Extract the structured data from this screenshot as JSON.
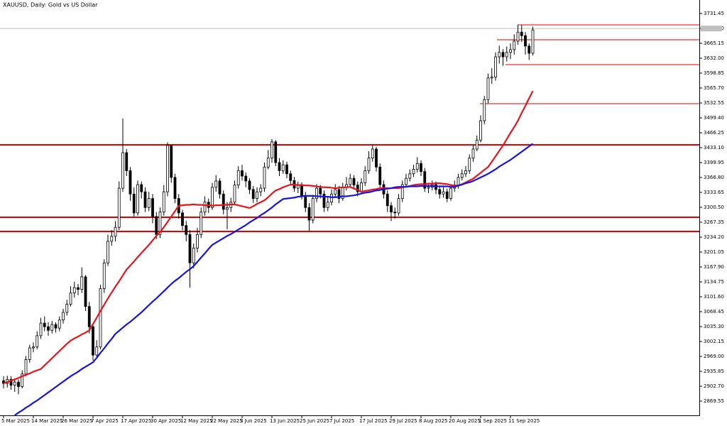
{
  "chart_data": {
    "type": "candlestick",
    "title": "XAUUSD, Daily:  Gold vs US Dollar",
    "categories": [
      "5 Mar 2025",
      null,
      null,
      null,
      null,
      null,
      null,
      null,
      "14 Mar 2025",
      null,
      null,
      null,
      null,
      null,
      null,
      null,
      "26 Mar 2025",
      null,
      null,
      null,
      null,
      null,
      null,
      null,
      "7 Apr 2025",
      null,
      null,
      null,
      null,
      null,
      null,
      null,
      "17 Apr 2025",
      null,
      null,
      null,
      null,
      null,
      null,
      null,
      "30 Apr 2025",
      null,
      null,
      null,
      null,
      null,
      null,
      null,
      "12 May 2025",
      null,
      null,
      null,
      null,
      null,
      null,
      null,
      "22 May 2025",
      null,
      null,
      null,
      null,
      null,
      null,
      null,
      "3 Jun 2025",
      null,
      null,
      null,
      null,
      null,
      null,
      null,
      "13 Jun 2025",
      null,
      null,
      null,
      null,
      null,
      null,
      null,
      "25 Jun 2025",
      null,
      null,
      null,
      null,
      null,
      null,
      null,
      "7 Jul 2025",
      null,
      null,
      null,
      null,
      null,
      null,
      null,
      "17 Jul 2025",
      null,
      null,
      null,
      null,
      null,
      null,
      null,
      "29 Jul 2025",
      null,
      null,
      null,
      null,
      null,
      null,
      null,
      "8 Aug 2025",
      null,
      null,
      null,
      null,
      null,
      null,
      null,
      "20 Aug 2025",
      null,
      null,
      null,
      null,
      null,
      null,
      null,
      "1 Sep 2025",
      null,
      null,
      null,
      null,
      null,
      null,
      null,
      "11 Sep 2025",
      null,
      null,
      null,
      null,
      null,
      null
    ],
    "open": [
      2915,
      2909,
      2918,
      2905,
      2912,
      2902,
      2930,
      2962,
      2988,
      2990,
      3015,
      3043,
      3035,
      3027,
      3040,
      3032,
      3050,
      3067,
      3085,
      3110,
      3122,
      3118,
      3146,
      3080,
      3035,
      2972,
      2990,
      3120,
      3177,
      3225,
      3236,
      3256,
      3343,
      3422,
      3382,
      3330,
      3288,
      3351,
      3335,
      3300,
      3320,
      3280,
      3240,
      3290,
      3335,
      3438,
      3367,
      3320,
      3288,
      3260,
      3240,
      3177,
      3210,
      3240,
      3290,
      3312,
      3300,
      3345,
      3359,
      3330,
      3296,
      3300,
      3312,
      3350,
      3382,
      3370,
      3359,
      3340,
      3320,
      3335,
      3343,
      3390,
      3410,
      3446,
      3400,
      3382,
      3395,
      3375,
      3360,
      3343,
      3350,
      3327,
      3300,
      3272,
      3320,
      3343,
      3330,
      3300,
      3312,
      3330,
      3340,
      3320,
      3345,
      3351,
      3365,
      3350,
      3335,
      3355,
      3382,
      3410,
      3430,
      3390,
      3351,
      3330,
      3304,
      3290,
      3288,
      3320,
      3351,
      3365,
      3375,
      3385,
      3398,
      3380,
      3343,
      3345,
      3351,
      3340,
      3330,
      3335,
      3320,
      3343,
      3350,
      3367,
      3375,
      3382,
      3410,
      3430,
      3450,
      3493,
      3540,
      3588,
      3590,
      3635,
      3645,
      3635,
      3645,
      3651,
      3670,
      3690,
      3682,
      3659,
      3643
    ],
    "high": [
      2925,
      2926,
      2925,
      2920,
      2918,
      2938,
      2970,
      2995,
      3000,
      3025,
      3055,
      3058,
      3045,
      3048,
      3045,
      3058,
      3075,
      3095,
      3125,
      3135,
      3130,
      3167,
      3150,
      3090,
      3040,
      3005,
      3128,
      3185,
      3240,
      3250,
      3270,
      3358,
      3498,
      3430,
      3390,
      3345,
      3360,
      3358,
      3345,
      3335,
      3330,
      3290,
      3300,
      3350,
      3445,
      3440,
      3375,
      3330,
      3295,
      3270,
      3250,
      3220,
      3255,
      3300,
      3325,
      3320,
      3355,
      3372,
      3365,
      3338,
      3312,
      3322,
      3360,
      3392,
      3395,
      3378,
      3365,
      3348,
      3345,
      3352,
      3400,
      3428,
      3452,
      3450,
      3410,
      3405,
      3402,
      3382,
      3368,
      3358,
      3356,
      3335,
      3310,
      3328,
      3352,
      3350,
      3338,
      3322,
      3340,
      3352,
      3348,
      3355,
      3368,
      3375,
      3372,
      3358,
      3365,
      3392,
      3425,
      3440,
      3435,
      3398,
      3360,
      3338,
      3312,
      3300,
      3330,
      3360,
      3375,
      3385,
      3395,
      3412,
      3405,
      3388,
      3355,
      3360,
      3358,
      3348,
      3345,
      3342,
      3352,
      3360,
      3375,
      3385,
      3392,
      3418,
      3440,
      3460,
      3505,
      3548,
      3598,
      3610,
      3645,
      3660,
      3652,
      3658,
      3665,
      3685,
      3707,
      3706,
      3690,
      3665,
      3702
    ],
    "low": [
      2898,
      2900,
      2895,
      2890,
      2885,
      2898,
      2925,
      2955,
      2978,
      2985,
      3008,
      3025,
      3015,
      3020,
      3022,
      3025,
      3042,
      3060,
      3080,
      3100,
      3105,
      3110,
      3070,
      3020,
      2960,
      2965,
      2985,
      3110,
      3170,
      3215,
      3225,
      3250,
      3335,
      3370,
      3315,
      3280,
      3282,
      3320,
      3290,
      3292,
      3265,
      3230,
      3232,
      3282,
      3325,
      3355,
      3310,
      3275,
      3250,
      3225,
      3122,
      3165,
      3200,
      3232,
      3282,
      3288,
      3295,
      3335,
      3320,
      3285,
      3252,
      3290,
      3305,
      3342,
      3360,
      3345,
      3330,
      3310,
      3312,
      3325,
      3335,
      3385,
      3400,
      3392,
      3370,
      3375,
      3365,
      3350,
      3335,
      3332,
      3318,
      3290,
      3248,
      3265,
      3312,
      3320,
      3290,
      3292,
      3305,
      3322,
      3310,
      3315,
      3338,
      3345,
      3342,
      3325,
      3330,
      3348,
      3375,
      3402,
      3380,
      3342,
      3320,
      3290,
      3270,
      3275,
      3282,
      3312,
      3345,
      3358,
      3368,
      3378,
      3370,
      3335,
      3332,
      3338,
      3330,
      3320,
      3322,
      3312,
      3315,
      3335,
      3342,
      3360,
      3368,
      3375,
      3402,
      3425,
      3445,
      3485,
      3532,
      3575,
      3582,
      3620,
      3615,
      3625,
      3630,
      3640,
      3662,
      3668,
      3640,
      3628,
      3638
    ],
    "close": [
      2909,
      2918,
      2905,
      2912,
      2902,
      2930,
      2962,
      2988,
      2990,
      3015,
      3043,
      3035,
      3027,
      3040,
      3032,
      3050,
      3067,
      3085,
      3110,
      3122,
      3118,
      3146,
      3080,
      3035,
      2972,
      2990,
      3120,
      3177,
      3225,
      3236,
      3256,
      3343,
      3422,
      3382,
      3330,
      3288,
      3351,
      3335,
      3300,
      3320,
      3280,
      3240,
      3290,
      3335,
      3438,
      3367,
      3320,
      3288,
      3260,
      3240,
      3177,
      3210,
      3240,
      3290,
      3312,
      3300,
      3345,
      3359,
      3330,
      3296,
      3300,
      3312,
      3350,
      3382,
      3370,
      3359,
      3340,
      3320,
      3335,
      3343,
      3390,
      3410,
      3446,
      3400,
      3382,
      3395,
      3375,
      3360,
      3343,
      3350,
      3327,
      3300,
      3272,
      3320,
      3343,
      3330,
      3300,
      3312,
      3330,
      3340,
      3320,
      3345,
      3351,
      3365,
      3350,
      3335,
      3355,
      3382,
      3410,
      3430,
      3390,
      3351,
      3330,
      3304,
      3290,
      3288,
      3320,
      3351,
      3365,
      3375,
      3385,
      3398,
      3380,
      3343,
      3345,
      3351,
      3340,
      3330,
      3335,
      3320,
      3343,
      3350,
      3367,
      3375,
      3382,
      3410,
      3430,
      3450,
      3493,
      3540,
      3588,
      3590,
      3635,
      3645,
      3635,
      3645,
      3651,
      3670,
      3690,
      3682,
      3659,
      3643,
      3695
    ],
    "up_color": "#ffffff",
    "down_color": "#000000",
    "series": [
      {
        "color": "#e8141b",
        "values": [
          2909,
          2912,
          2915,
          2918,
          2921,
          2925,
          2928,
          2931,
          2935,
          2938,
          2941,
          2949,
          2957,
          2965,
          2973,
          2981,
          2989,
          2997,
          3004,
          3009,
          3013,
          3018,
          3022,
          3027,
          3041,
          3055,
          3070,
          3084,
          3098,
          3111,
          3124,
          3136,
          3149,
          3162,
          3171,
          3180,
          3190,
          3199,
          3208,
          3217,
          3227,
          3237,
          3246,
          3256,
          3268,
          3280,
          3292,
          3304,
          3305,
          3306,
          3306,
          3307,
          3306,
          3306,
          3305,
          3305,
          3304,
          3305,
          3305,
          3306,
          3306,
          3307,
          3307,
          3305,
          3303,
          3301,
          3299,
          3303,
          3308,
          3312,
          3316,
          3323,
          3331,
          3338,
          3341,
          3345,
          3348,
          3351,
          3351,
          3350,
          3350,
          3349,
          3349,
          3348,
          3347,
          3346,
          3345,
          3345,
          3344,
          3343,
          3344,
          3345,
          3345,
          3346,
          3342,
          3339,
          3335,
          3337,
          3338,
          3340,
          3341,
          3343,
          3343,
          3343,
          3343,
          3343,
          3343,
          3345,
          3346,
          3348,
          3350,
          3351,
          3352,
          3352,
          3353,
          3353,
          3354,
          3354,
          3353,
          3352,
          3350,
          3349,
          3348,
          3352,
          3356,
          3360,
          3364,
          3371,
          3377,
          3384,
          3390,
          3402,
          3414,
          3426,
          3438,
          3452,
          3466,
          3479,
          3493,
          3510,
          3526,
          3543,
          3559
        ]
      },
      {
        "color": "#1414e6",
        "values": [
          null,
          null,
          null,
          2838,
          2844,
          2849,
          2855,
          2860,
          2866,
          2871,
          2877,
          2883,
          2889,
          2895,
          2901,
          2907,
          2913,
          2919,
          2925,
          2930,
          2935,
          2941,
          2946,
          2951,
          2956,
          2966,
          2977,
          2987,
          2998,
          3008,
          3019,
          3026,
          3033,
          3040,
          3046,
          3053,
          3060,
          3067,
          3075,
          3083,
          3091,
          3098,
          3106,
          3114,
          3122,
          3130,
          3137,
          3143,
          3150,
          3157,
          3163,
          3170,
          3179,
          3189,
          3198,
          3208,
          3217,
          3222,
          3227,
          3232,
          3237,
          3241,
          3246,
          3251,
          3256,
          3261,
          3267,
          3272,
          3277,
          3283,
          3288,
          3294,
          3300,
          3307,
          3313,
          3319,
          3320,
          3321,
          3322,
          3324,
          3325,
          3326,
          3326,
          3326,
          3325,
          3325,
          3324,
          3324,
          3323,
          3323,
          3324,
          3325,
          3325,
          3326,
          3327,
          3329,
          3331,
          3333,
          3334,
          3336,
          3338,
          3339,
          3341,
          3342,
          3343,
          3345,
          3346,
          3346,
          3346,
          3347,
          3347,
          3347,
          3348,
          3348,
          3348,
          3348,
          3347,
          3347,
          3347,
          3347,
          3346,
          3346,
          3349,
          3351,
          3354,
          3356,
          3359,
          3363,
          3367,
          3371,
          3375,
          3380,
          3385,
          3391,
          3396,
          3401,
          3406,
          3412,
          3418,
          3424,
          3430,
          3436,
          3442
        ]
      }
    ],
    "levels": [
      3439.4,
      3278.4,
      3246.9,
      3706.2,
      3673,
      3617.8,
      3531
    ],
    "level_color": "#e60000",
    "bid": 3698,
    "bid_color": "#c0c0c0",
    "ylim": [
      2838,
      3761.4
    ],
    "yticks": [
      3731.45,
      {
        "value": 3698.3,
        "label": "3698.30"
      },
      3665.15,
      {
        "value": 3632,
        "label": "3632.00"
      },
      3598.85,
      {
        "value": 3565.7,
        "label": "3565.70"
      },
      3532.55,
      {
        "value": 3499.4,
        "label": "3499.40"
      },
      3466.25,
      {
        "value": 3433.1,
        "label": "3433.10"
      },
      3399.95,
      {
        "value": 3366.8,
        "label": "3366.80"
      },
      3333.65,
      {
        "value": 3300.5,
        "label": "3300.50"
      },
      3267.35,
      {
        "value": 3234.2,
        "label": "3234.20"
      },
      3201.05,
      {
        "value": 3167.9,
        "label": "3167.90"
      },
      3134.75,
      {
        "value": 3101.6,
        "label": "3101.60"
      },
      3068.45,
      {
        "value": 3035.3,
        "label": "3035.30"
      },
      3002.15,
      {
        "value": 2969,
        "label": "2969.00"
      },
      2935.85,
      {
        "value": 2902.7,
        "label": "2902.70"
      },
      2869.55
    ]
  }
}
